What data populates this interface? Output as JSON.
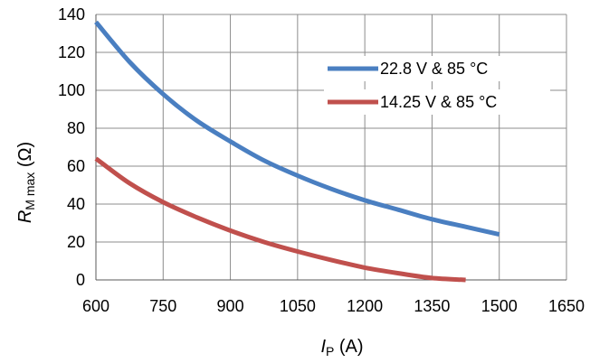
{
  "chart_data": {
    "type": "line",
    "x_ticks": [
      "600",
      "750",
      "900",
      "1050",
      "1200",
      "1350",
      "1500",
      "1650"
    ],
    "y_ticks": [
      "0",
      "20",
      "40",
      "60",
      "80",
      "100",
      "120",
      "140"
    ],
    "xlim": [
      600,
      1650
    ],
    "ylim": [
      0,
      140
    ],
    "grid": true,
    "legend_position": "top-right",
    "xlabel": {
      "main": "I",
      "sub": "P",
      "unit": " (A)"
    },
    "ylabel": {
      "main": "R",
      "sub": "M max",
      "unit": " (Ω)"
    },
    "series": [
      {
        "name": "22.8 V & 85 °C",
        "color": "#4a7fc1",
        "x": [
          600,
          675,
          750,
          825,
          900,
          975,
          1050,
          1125,
          1200,
          1275,
          1350,
          1425,
          1500
        ],
        "y": [
          136,
          115,
          98,
          84,
          73,
          63,
          55,
          48,
          42,
          37,
          32,
          28,
          24
        ]
      },
      {
        "name": "14.25 V & 85 °C",
        "color": "#c0504d",
        "x": [
          600,
          675,
          750,
          825,
          900,
          975,
          1050,
          1125,
          1200,
          1275,
          1350,
          1425
        ],
        "y": [
          64,
          51,
          41,
          33,
          26,
          20,
          15,
          10.5,
          6.5,
          3.5,
          1,
          0
        ]
      }
    ]
  }
}
